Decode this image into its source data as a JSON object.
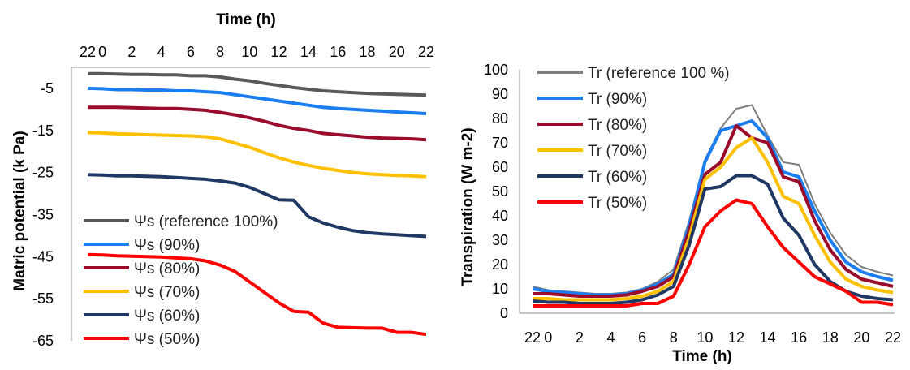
{
  "chart_data": [
    {
      "type": "line",
      "xlabel": "Time (h)",
      "ylabel": "Matric potential (k Pa)",
      "x_axis_position": "top",
      "x_tick_labels": [
        "22",
        "0",
        "2",
        "4",
        "6",
        "8",
        "10",
        "12",
        "14",
        "16",
        "18",
        "20",
        "22"
      ],
      "y_ticks": [
        -5,
        -15,
        -25,
        -35,
        -45,
        -55,
        -65
      ],
      "ylim": [
        -65,
        0
      ],
      "legend_position": "bottom-left",
      "x": [
        -1,
        0,
        1,
        2,
        3,
        4,
        5,
        6,
        7,
        8,
        9,
        10,
        11,
        12,
        13,
        14,
        15,
        16,
        17,
        18,
        19,
        20,
        21,
        22
      ],
      "series": [
        {
          "name": "Ψs (reference  100%)",
          "color": "#595959",
          "values": [
            -1.5,
            -1.5,
            -1.6,
            -1.7,
            -1.7,
            -1.8,
            -1.8,
            -2,
            -2,
            -2.3,
            -2.8,
            -3.2,
            -3.8,
            -4.3,
            -4.8,
            -5.2,
            -5.6,
            -5.8,
            -6,
            -6.2,
            -6.3,
            -6.4,
            -6.5,
            -6.6
          ]
        },
        {
          "name": "Ψs (90%)",
          "color": "#1a7ef0",
          "values": [
            -5,
            -5.1,
            -5.3,
            -5.3,
            -5.4,
            -5.4,
            -5.6,
            -5.6,
            -5.8,
            -6,
            -6.5,
            -7,
            -7.5,
            -8,
            -8.5,
            -9,
            -9.5,
            -9.8,
            -10,
            -10.2,
            -10.4,
            -10.6,
            -10.8,
            -11
          ]
        },
        {
          "name": "Ψs (80%)",
          "color": "#9b0b2b",
          "values": [
            -9.5,
            -9.5,
            -9.5,
            -9.6,
            -9.7,
            -9.8,
            -9.8,
            -10,
            -10.2,
            -10.7,
            -11.3,
            -12,
            -12.8,
            -13.8,
            -14.5,
            -15,
            -15.7,
            -16,
            -16.3,
            -16.6,
            -16.8,
            -16.9,
            -17,
            -17.2
          ]
        },
        {
          "name": "Ψs (70%)",
          "color": "#ffc000",
          "values": [
            -15.5,
            -15.6,
            -15.8,
            -15.9,
            -16,
            -16.1,
            -16.2,
            -16.3,
            -16.5,
            -17,
            -18,
            -19,
            -20.3,
            -21.5,
            -22.5,
            -23.3,
            -24,
            -24.5,
            -25,
            -25.3,
            -25.5,
            -25.7,
            -25.8,
            -26
          ]
        },
        {
          "name": "Ψs (60%)",
          "color": "#203864",
          "values": [
            -25.5,
            -25.6,
            -25.8,
            -25.8,
            -25.9,
            -26,
            -26.2,
            -26.4,
            -26.6,
            -27,
            -27.5,
            -28.5,
            -30,
            -31.5,
            -31.6,
            -35.5,
            -37,
            -38,
            -38.8,
            -39.3,
            -39.6,
            -39.8,
            -40,
            -40.2
          ]
        },
        {
          "name": "Ψs (50%)",
          "color": "#ff0000",
          "values": [
            -44.5,
            -44.6,
            -44.8,
            -44.9,
            -45,
            -45.1,
            -45.3,
            -45.5,
            -46,
            -47,
            -48.5,
            -51,
            -53.5,
            -56,
            -58,
            -58.2,
            -60.8,
            -61.8,
            -61.9,
            -62,
            -62,
            -63,
            -63,
            -63.5
          ]
        }
      ]
    },
    {
      "type": "line",
      "xlabel": "Time (h)",
      "ylabel": "Transpiration  (W m-2)",
      "x_tick_labels": [
        "22",
        "0",
        "2",
        "4",
        "6",
        "8",
        "10",
        "12",
        "14",
        "16",
        "18",
        "20",
        "22"
      ],
      "y_ticks": [
        0,
        10,
        20,
        30,
        40,
        50,
        60,
        70,
        80,
        90,
        100
      ],
      "ylim": [
        0,
        100
      ],
      "legend_position": "top-left",
      "x": [
        -1,
        0,
        1,
        2,
        3,
        4,
        5,
        6,
        7,
        8,
        9,
        10,
        11,
        12,
        13,
        14,
        15,
        16,
        17,
        18,
        19,
        20,
        21,
        22
      ],
      "series": [
        {
          "name": "Tr (reference 100 %)",
          "color": "#7f7f7f",
          "values": [
            11,
            9.5,
            9,
            8.5,
            8,
            8,
            8.5,
            10,
            13,
            18,
            38,
            63,
            76,
            84,
            85.5,
            73,
            62,
            61,
            45,
            33,
            24,
            19,
            17,
            15.5
          ]
        },
        {
          "name": "Tr (90%)",
          "color": "#1a7ef0",
          "values": [
            10,
            9,
            8.5,
            8,
            7.5,
            7.5,
            8,
            9.5,
            12,
            16,
            36,
            62,
            75,
            77,
            79,
            72,
            58,
            56,
            42,
            30,
            21,
            17,
            15,
            13.5
          ]
        },
        {
          "name": "Tr (80%)",
          "color": "#9b0b2b",
          "values": [
            8,
            8,
            7.5,
            7,
            7,
            7,
            7.5,
            9,
            11,
            15,
            34,
            57,
            62,
            77,
            72,
            70,
            56,
            54,
            38,
            26,
            18,
            14,
            12.5,
            11
          ]
        },
        {
          "name": "Tr (70%)",
          "color": "#ffc000",
          "values": [
            6,
            6,
            5.5,
            5.5,
            5.5,
            5.5,
            6,
            7,
            9,
            13,
            31,
            55,
            60,
            68,
            72,
            62,
            48,
            45,
            32,
            21,
            14,
            11,
            9.5,
            8.5
          ]
        },
        {
          "name": "Tr (60%)",
          "color": "#203864",
          "values": [
            5,
            4.5,
            4.5,
            4,
            4,
            4,
            4.5,
            5.5,
            7.5,
            11,
            28,
            51,
            52,
            56.5,
            56.5,
            53,
            39,
            32,
            20,
            13,
            9,
            7,
            6,
            5.5
          ]
        },
        {
          "name": "Tr (50%)",
          "color": "#ff0000",
          "values": [
            3,
            3,
            3,
            3,
            3,
            3,
            3,
            4,
            4,
            7,
            20,
            35.5,
            42,
            46.5,
            45,
            35.5,
            27,
            21,
            15,
            12,
            9,
            4.5,
            4.5,
            3.5
          ]
        }
      ]
    }
  ]
}
